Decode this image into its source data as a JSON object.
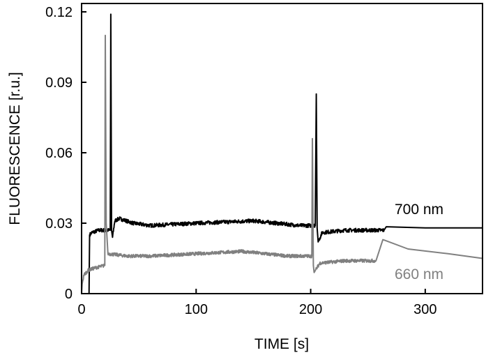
{
  "chart_data": {
    "type": "line",
    "title": "",
    "xlabel": "TIME [s]",
    "ylabel": "FLUORESCENCE [r.u.]",
    "xlim": [
      0,
      350
    ],
    "ylim": [
      0,
      0.12
    ],
    "xticks": [
      0,
      100,
      200,
      300
    ],
    "xtick_labels": [
      "0",
      "100",
      "200",
      "300"
    ],
    "yticks": [
      0,
      0.03,
      0.06,
      0.09,
      0.12
    ],
    "ytick_labels": [
      "0",
      "0.03",
      "0.06",
      "0.09",
      "0.12"
    ],
    "grid": false,
    "series": [
      {
        "name": "700 nm",
        "color": "#000000",
        "points": [
          [
            0,
            0
          ],
          [
            6.5,
            0
          ],
          [
            7,
            0.025
          ],
          [
            9,
            0.026
          ],
          [
            15,
            0.027
          ],
          [
            25,
            0.027
          ],
          [
            25.5,
            0.119
          ],
          [
            26.2,
            0.027
          ],
          [
            27,
            0.024
          ],
          [
            29,
            0.031
          ],
          [
            33,
            0.032
          ],
          [
            45,
            0.03
          ],
          [
            60,
            0.029
          ],
          [
            100,
            0.03
          ],
          [
            150,
            0.031
          ],
          [
            190,
            0.029
          ],
          [
            204,
            0.029
          ],
          [
            204.9,
            0.085
          ],
          [
            205.6,
            0.028
          ],
          [
            206.5,
            0.022
          ],
          [
            210,
            0.026
          ],
          [
            230,
            0.027
          ],
          [
            264,
            0.027
          ],
          [
            266,
            0.0285
          ],
          [
            300,
            0.028
          ],
          [
            350,
            0.028
          ]
        ],
        "noise": [
          [
            7,
            25,
            0.0008
          ],
          [
            27,
            204,
            0.0008
          ],
          [
            207,
            264,
            0.0008
          ]
        ]
      },
      {
        "name": "660 nm",
        "color": "#808080",
        "points": [
          [
            0,
            0
          ],
          [
            0.5,
            0.004
          ],
          [
            2,
            0.008
          ],
          [
            6,
            0.01
          ],
          [
            12,
            0.011
          ],
          [
            20.3,
            0.012
          ],
          [
            20.7,
            0.11
          ],
          [
            21.5,
            0.03
          ],
          [
            23,
            0.017
          ],
          [
            40,
            0.016
          ],
          [
            60,
            0.016
          ],
          [
            100,
            0.017
          ],
          [
            140,
            0.018
          ],
          [
            180,
            0.016
          ],
          [
            201,
            0.016
          ],
          [
            201.5,
            0.066
          ],
          [
            202.3,
            0.012
          ],
          [
            203,
            0.009
          ],
          [
            208,
            0.013
          ],
          [
            230,
            0.014
          ],
          [
            257,
            0.014
          ],
          [
            263,
            0.023
          ],
          [
            266,
            0.0225
          ],
          [
            285,
            0.019
          ],
          [
            320,
            0.017
          ],
          [
            350,
            0.015
          ]
        ],
        "noise": [
          [
            1,
            20,
            0.0007
          ],
          [
            23,
            201,
            0.0007
          ],
          [
            204,
            257,
            0.0007
          ]
        ]
      }
    ],
    "annotations": [
      "700 nm",
      "660 nm"
    ]
  }
}
